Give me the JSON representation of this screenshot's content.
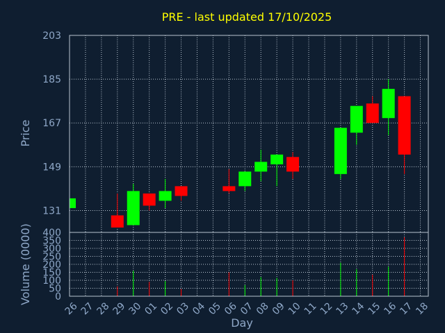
{
  "chart_data": {
    "type": "candlestick",
    "title": "PRE - last updated 17/10/2025",
    "ylabel": "Price",
    "volume_label": "Volume (0000)",
    "xlabel": "Day",
    "price_ylim": [
      122,
      203
    ],
    "price_ticks": [
      "203",
      "185",
      "167",
      "149",
      "131"
    ],
    "volume_ylim": [
      0,
      400
    ],
    "volume_ticks": [
      "400",
      "350",
      "300",
      "250",
      "200",
      "150",
      "100",
      "50",
      "0"
    ],
    "days": [
      "26",
      "27",
      "28",
      "29",
      "30",
      "01",
      "02",
      "03",
      "04",
      "05",
      "06",
      "07",
      "08",
      "09",
      "10",
      "11",
      "12",
      "13",
      "14",
      "15",
      "16",
      "17",
      "18"
    ],
    "candles": [
      {
        "day": "26",
        "open": 132,
        "close": 136,
        "high": 136,
        "low": 132,
        "volume": 0
      },
      {
        "day": "29",
        "open": 129,
        "close": 124,
        "high": 138,
        "low": 124,
        "volume": 62
      },
      {
        "day": "30",
        "open": 125,
        "close": 139,
        "high": 142,
        "low": 125,
        "volume": 160
      },
      {
        "day": "01",
        "open": 138,
        "close": 133,
        "high": 138,
        "low": 131,
        "volume": 90
      },
      {
        "day": "02",
        "open": 135,
        "close": 139,
        "high": 144,
        "low": 132,
        "volume": 95
      },
      {
        "day": "03",
        "open": 141,
        "close": 137,
        "high": 141,
        "low": 135,
        "volume": 45
      },
      {
        "day": "06",
        "open": 141,
        "close": 139,
        "high": 148,
        "low": 138,
        "volume": 150
      },
      {
        "day": "07",
        "open": 141,
        "close": 147,
        "high": 147,
        "low": 139,
        "volume": 70
      },
      {
        "day": "08",
        "open": 147,
        "close": 151,
        "high": 156,
        "low": 143,
        "volume": 120
      },
      {
        "day": "09",
        "open": 150,
        "close": 154,
        "high": 154,
        "low": 141,
        "volume": 115
      },
      {
        "day": "10",
        "open": 153,
        "close": 147,
        "high": 155,
        "low": 144,
        "volume": 100
      },
      {
        "day": "13",
        "open": 146,
        "close": 165,
        "high": 165,
        "low": 144,
        "volume": 210
      },
      {
        "day": "14",
        "open": 163,
        "close": 174,
        "high": 174,
        "low": 158,
        "volume": 170
      },
      {
        "day": "15",
        "open": 175,
        "close": 167,
        "high": 178,
        "low": 167,
        "volume": 135
      },
      {
        "day": "16",
        "open": 169,
        "close": 181,
        "high": 185,
        "low": 162,
        "volume": 185
      },
      {
        "day": "17",
        "open": 178,
        "close": 154,
        "high": 178,
        "low": 146,
        "volume": 370
      }
    ],
    "up_color": "#00ff00",
    "down_color": "#ff0000",
    "background": "#0f1e30",
    "grid": true
  }
}
